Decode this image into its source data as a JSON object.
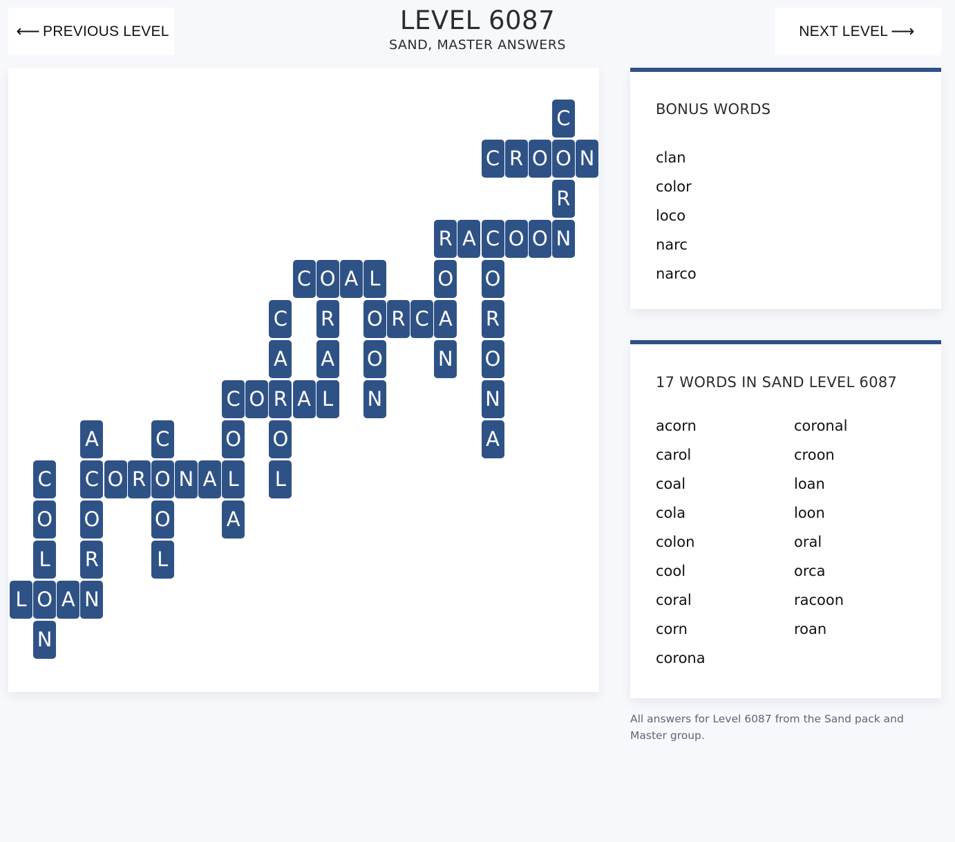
{
  "nav": {
    "prev_arrow": "⟵",
    "prev_label": "PREVIOUS LEVEL",
    "next_label": "NEXT LEVEL",
    "next_arrow": "⟶"
  },
  "header": {
    "title": "LEVEL 6087",
    "subtitle": "SAND, MASTER ANSWERS"
  },
  "board": {
    "tile_color": "#2f5286",
    "tiles": [
      {
        "r": 0,
        "c": 23,
        "ch": "C"
      },
      {
        "r": 1,
        "c": 20,
        "ch": "C"
      },
      {
        "r": 1,
        "c": 21,
        "ch": "R"
      },
      {
        "r": 1,
        "c": 22,
        "ch": "O"
      },
      {
        "r": 1,
        "c": 23,
        "ch": "O"
      },
      {
        "r": 1,
        "c": 24,
        "ch": "N"
      },
      {
        "r": 2,
        "c": 23,
        "ch": "R"
      },
      {
        "r": 3,
        "c": 18,
        "ch": "R"
      },
      {
        "r": 3,
        "c": 19,
        "ch": "A"
      },
      {
        "r": 3,
        "c": 20,
        "ch": "C"
      },
      {
        "r": 3,
        "c": 21,
        "ch": "O"
      },
      {
        "r": 3,
        "c": 22,
        "ch": "O"
      },
      {
        "r": 3,
        "c": 23,
        "ch": "N"
      },
      {
        "r": 4,
        "c": 12,
        "ch": "C"
      },
      {
        "r": 4,
        "c": 13,
        "ch": "O"
      },
      {
        "r": 4,
        "c": 14,
        "ch": "A"
      },
      {
        "r": 4,
        "c": 15,
        "ch": "L"
      },
      {
        "r": 4,
        "c": 18,
        "ch": "O"
      },
      {
        "r": 4,
        "c": 20,
        "ch": "O"
      },
      {
        "r": 5,
        "c": 11,
        "ch": "C"
      },
      {
        "r": 5,
        "c": 13,
        "ch": "R"
      },
      {
        "r": 5,
        "c": 15,
        "ch": "O"
      },
      {
        "r": 5,
        "c": 16,
        "ch": "R"
      },
      {
        "r": 5,
        "c": 17,
        "ch": "C"
      },
      {
        "r": 5,
        "c": 18,
        "ch": "A"
      },
      {
        "r": 5,
        "c": 20,
        "ch": "R"
      },
      {
        "r": 6,
        "c": 11,
        "ch": "A"
      },
      {
        "r": 6,
        "c": 13,
        "ch": "A"
      },
      {
        "r": 6,
        "c": 15,
        "ch": "O"
      },
      {
        "r": 6,
        "c": 18,
        "ch": "N"
      },
      {
        "r": 6,
        "c": 20,
        "ch": "O"
      },
      {
        "r": 7,
        "c": 9,
        "ch": "C"
      },
      {
        "r": 7,
        "c": 10,
        "ch": "O"
      },
      {
        "r": 7,
        "c": 11,
        "ch": "R"
      },
      {
        "r": 7,
        "c": 12,
        "ch": "A"
      },
      {
        "r": 7,
        "c": 13,
        "ch": "L"
      },
      {
        "r": 7,
        "c": 15,
        "ch": "N"
      },
      {
        "r": 7,
        "c": 20,
        "ch": "N"
      },
      {
        "r": 8,
        "c": 3,
        "ch": "A"
      },
      {
        "r": 8,
        "c": 6,
        "ch": "C"
      },
      {
        "r": 8,
        "c": 9,
        "ch": "O"
      },
      {
        "r": 8,
        "c": 11,
        "ch": "O"
      },
      {
        "r": 8,
        "c": 20,
        "ch": "A"
      },
      {
        "r": 9,
        "c": 1,
        "ch": "C"
      },
      {
        "r": 9,
        "c": 3,
        "ch": "C"
      },
      {
        "r": 9,
        "c": 4,
        "ch": "O"
      },
      {
        "r": 9,
        "c": 5,
        "ch": "R"
      },
      {
        "r": 9,
        "c": 6,
        "ch": "O"
      },
      {
        "r": 9,
        "c": 7,
        "ch": "N"
      },
      {
        "r": 9,
        "c": 8,
        "ch": "A"
      },
      {
        "r": 9,
        "c": 9,
        "ch": "L"
      },
      {
        "r": 9,
        "c": 11,
        "ch": "L"
      },
      {
        "r": 10,
        "c": 1,
        "ch": "O"
      },
      {
        "r": 10,
        "c": 3,
        "ch": "O"
      },
      {
        "r": 10,
        "c": 6,
        "ch": "O"
      },
      {
        "r": 10,
        "c": 9,
        "ch": "A"
      },
      {
        "r": 11,
        "c": 1,
        "ch": "L"
      },
      {
        "r": 11,
        "c": 3,
        "ch": "R"
      },
      {
        "r": 11,
        "c": 6,
        "ch": "L"
      },
      {
        "r": 12,
        "c": 0,
        "ch": "L"
      },
      {
        "r": 12,
        "c": 1,
        "ch": "O"
      },
      {
        "r": 12,
        "c": 2,
        "ch": "A"
      },
      {
        "r": 12,
        "c": 3,
        "ch": "N"
      },
      {
        "r": 13,
        "c": 1,
        "ch": "N"
      }
    ]
  },
  "bonus": {
    "heading": "BONUS WORDS",
    "words": [
      "clan",
      "color",
      "loco",
      "narc",
      "narco"
    ]
  },
  "words": {
    "heading": "17 WORDS IN SAND LEVEL 6087",
    "list": [
      "acorn",
      "carol",
      "coal",
      "cola",
      "colon",
      "cool",
      "coral",
      "corn",
      "corona",
      "coronal",
      "croon",
      "loan",
      "loon",
      "oral",
      "orca",
      "racoon",
      "roan"
    ]
  },
  "footer": {
    "note": "All answers for Level 6087 from the Sand pack and Master group."
  }
}
